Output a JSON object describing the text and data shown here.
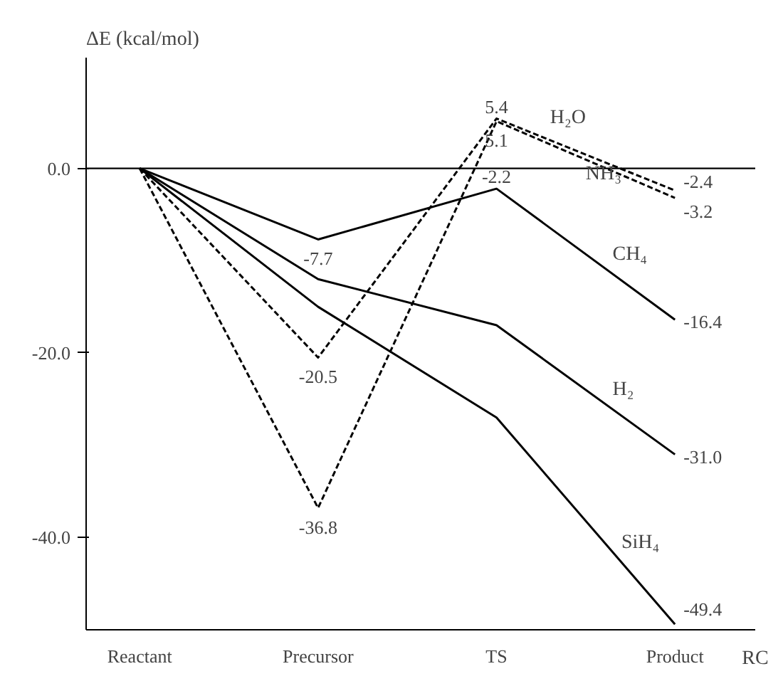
{
  "chart_data": {
    "type": "line",
    "xlabel": "RC",
    "ylabel": "ΔE (kcal/mol)",
    "categories": [
      "Reactant",
      "Precursor",
      "TS",
      "Product"
    ],
    "ylim": [
      -50,
      12
    ],
    "yticks": [
      {
        "value": 0,
        "label": "0.0"
      },
      {
        "value": -20,
        "label": "-20.0"
      },
      {
        "value": -40,
        "label": "-40.0"
      }
    ],
    "grid": false,
    "ref_lines": [
      {
        "axis": "y",
        "value": 0,
        "color": "#000000",
        "line_style": "solid"
      }
    ],
    "series": [
      {
        "name": "H₂O",
        "color": "#000000",
        "line_style": "dashed",
        "values": [
          0,
          -20.5,
          5.4,
          -2.4
        ],
        "value_labels": [
          null,
          "-20.5",
          "5.4",
          "-2.4"
        ]
      },
      {
        "name": "NH₃",
        "color": "#000000",
        "line_style": "dashed",
        "values": [
          0,
          -36.8,
          5.1,
          -3.2
        ],
        "value_labels": [
          null,
          "-36.8",
          "5.1",
          "-3.2"
        ]
      },
      {
        "name": "CH₄",
        "color": "#000000",
        "line_style": "solid",
        "values": [
          0,
          -7.7,
          -2.2,
          -16.4
        ],
        "value_labels": [
          null,
          "-7.7",
          "-2.2",
          "-16.4"
        ]
      },
      {
        "name": "H₂",
        "color": "#000000",
        "line_style": "solid",
        "values": [
          0,
          -12,
          -17,
          -31.0
        ],
        "value_labels": [
          null,
          null,
          null,
          "-31.0"
        ]
      },
      {
        "name": "SiH₄",
        "color": "#000000",
        "line_style": "solid",
        "values": [
          0,
          -15,
          -27,
          -49.4
        ],
        "value_labels": [
          null,
          null,
          null,
          "-49.4"
        ]
      }
    ]
  }
}
